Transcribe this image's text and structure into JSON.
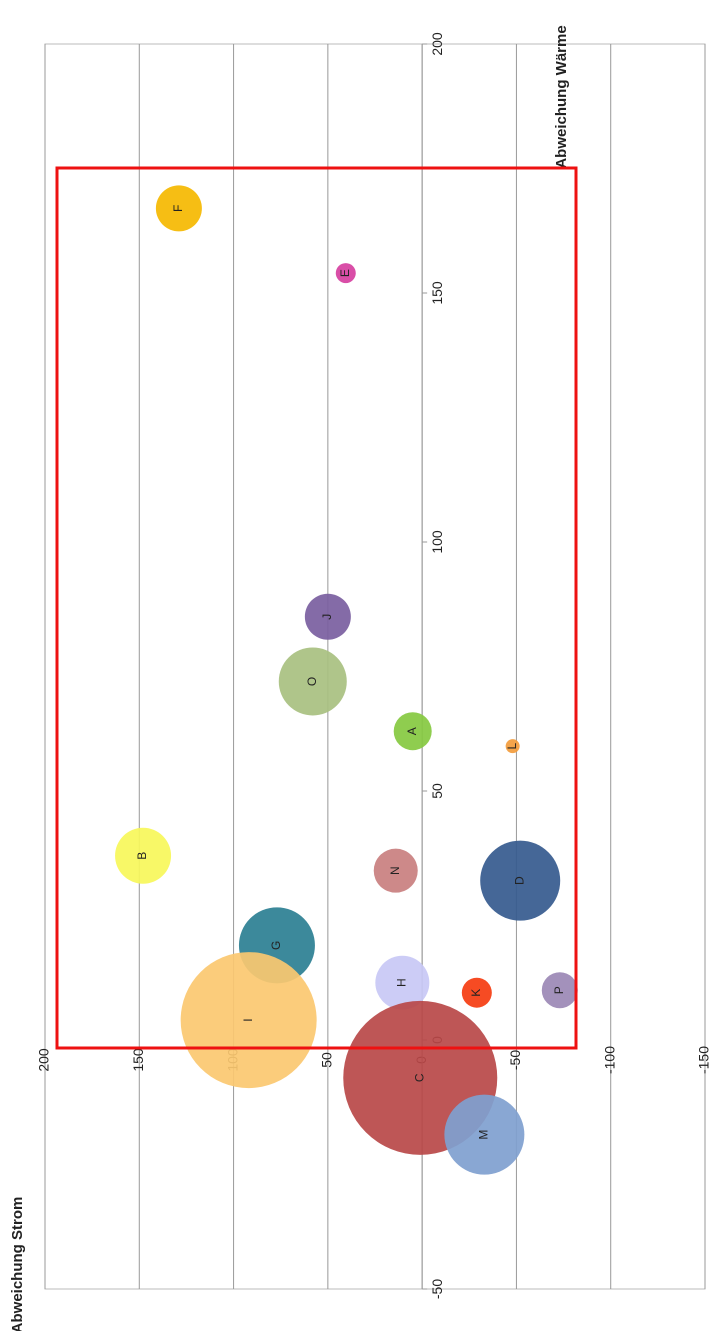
{
  "chart_data": {
    "type": "bubble",
    "xlabel": "Abweichung Wärme",
    "ylabel": "Abweichung Strom",
    "xlim": [
      -50,
      200
    ],
    "xticks": [
      -50,
      0,
      50,
      100,
      150,
      200
    ],
    "ylim": [
      -150,
      200
    ],
    "yticks": [
      -150,
      -100,
      -50,
      0,
      50,
      100,
      150,
      200
    ],
    "grid": true,
    "labels": [
      "F",
      "E",
      "J",
      "O",
      "A",
      "L",
      "B",
      "N",
      "D",
      "G",
      "H",
      "K",
      "P",
      "I",
      "C",
      "M"
    ],
    "x": [
      167,
      154,
      85,
      72,
      62,
      59,
      37,
      34,
      32,
      19,
      11.5,
      9.5,
      10,
      4,
      -7.6,
      -19
    ],
    "values": [
      129,
      40.5,
      50,
      58,
      5,
      -48,
      148,
      14,
      -52,
      77,
      10.5,
      -29,
      -73,
      92,
      1,
      -33
    ],
    "sizes": [
      23,
      10,
      23,
      34,
      19,
      7,
      28,
      22,
      40,
      38,
      27,
      15,
      18,
      68,
      77,
      40
    ],
    "colors": [
      "#f5b800",
      "#d63fa0",
      "#7a5ea0",
      "#a8c080",
      "#86c940",
      "#f39c3c",
      "#f7f75a",
      "#c97f7f",
      "#355a8e",
      "#2b7f92",
      "#c8c8f5",
      "#f53c10",
      "#9b88b5",
      "#fbc870",
      "#b84848",
      "#7f9fcf"
    ]
  }
}
